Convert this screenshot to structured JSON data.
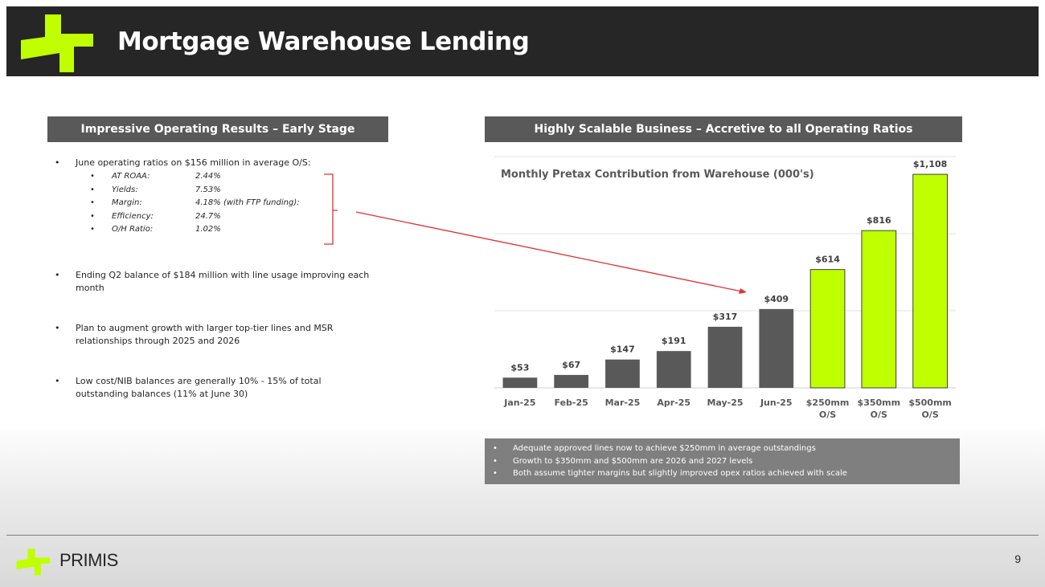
{
  "header": {
    "title": "Mortgage Warehouse Lending",
    "logo_icon": "primis-plus-mark-icon"
  },
  "left_panel": {
    "heading": "Impressive Operating Results – Early Stage",
    "bullet1": "June operating ratios on $156 million in average O/S:",
    "ratios": [
      {
        "k": "AT ROAA:",
        "v": "2.44%"
      },
      {
        "k": "Yields:",
        "v": "7.53%"
      },
      {
        "k": "Margin:",
        "v": "4.18% (with FTP funding):"
      },
      {
        "k": "Efficiency:",
        "v": "24.7%"
      },
      {
        "k": "O/H Ratio:",
        "v": "1.02%"
      }
    ],
    "bullet2": "Ending Q2 balance of $184 million with line usage improving each month",
    "bullet3": "Plan to augment growth with larger top-tier lines and MSR relationships through 2025 and 2026",
    "bullet4": "Low cost/NIB balances are generally 10% - 15% of total outstanding balances (11% at June 30)"
  },
  "right_panel": {
    "heading": "Highly Scalable Business – Accretive to all Operating Ratios",
    "notes": [
      "Adequate approved lines now to achieve $250mm in average outstandings",
      "Growth to $350mm and $500mm are 2026 and 2027 levels",
      "Both assume tighter margins but slightly improved opex ratios achieved with scale"
    ]
  },
  "chart_data": {
    "type": "bar",
    "title": "Monthly Pretax Contribution from Warehouse (000's)",
    "categories": [
      "Jan-25",
      "Feb-25",
      "Mar-25",
      "Apr-25",
      "May-25",
      "Jun-25",
      "$250mm O/S",
      "$350mm O/S",
      "$500mm O/S"
    ],
    "values": [
      53,
      67,
      147,
      191,
      317,
      409,
      614,
      816,
      1108
    ],
    "labels": [
      "$53",
      "$67",
      "$147",
      "$191",
      "$317",
      "$409",
      "$614",
      "$816",
      "$1,108"
    ],
    "ylim": [
      0,
      1200
    ],
    "grid": true,
    "colors": {
      "actual": "#595959",
      "projected": "#c0ff00"
    },
    "projected_from_index": 6
  },
  "footer": {
    "brand": "PRIMIS",
    "page": "9",
    "logo_icon": "primis-plus-mark-icon"
  },
  "colors": {
    "accent": "#c0ff00",
    "dark": "#262626",
    "annotation": "#e03030"
  }
}
